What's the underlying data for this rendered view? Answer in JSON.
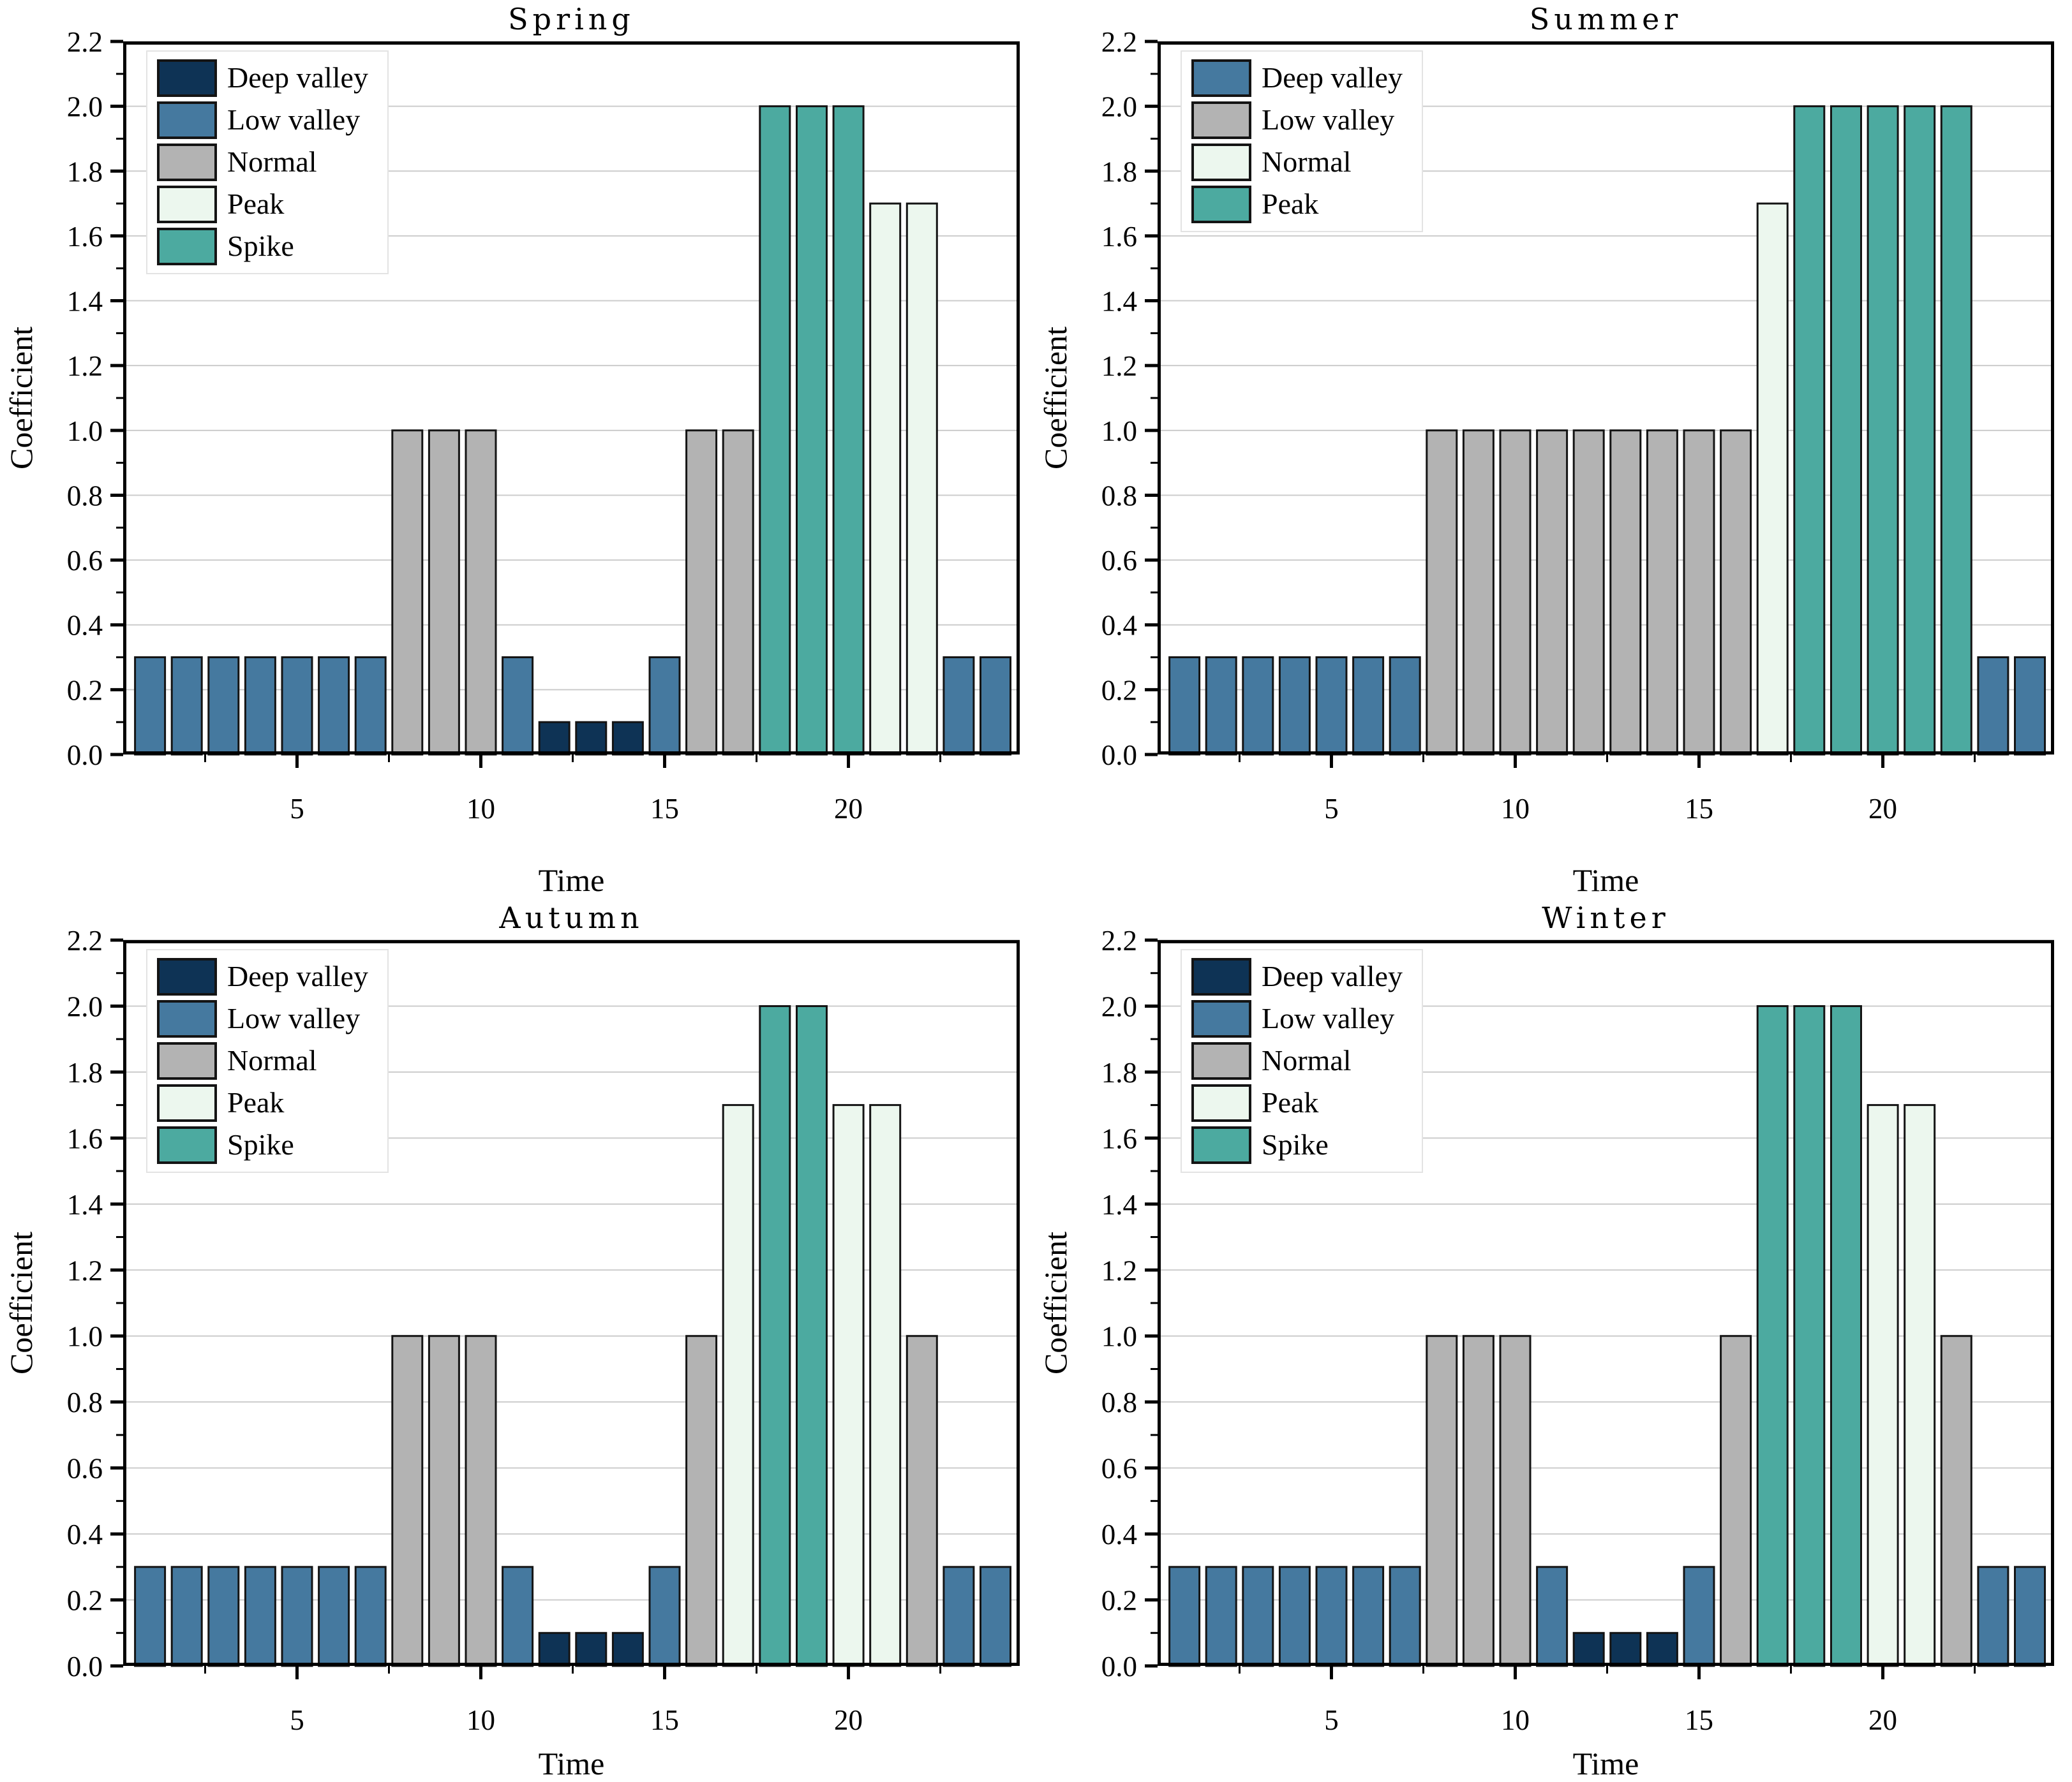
{
  "figure": {
    "background": "#ffffff",
    "bar_edge_color": "#141414",
    "grid_color": "#cccccc",
    "axis_color": "#000000",
    "palette": {
      "navy": "#0e3355",
      "blue": "#45799f",
      "gray": "#b3b3b3",
      "mint": "#ecf7ee",
      "teal": "#4caaa0"
    }
  },
  "axes": {
    "xlabel": "Time",
    "ylabel": "Coefficient",
    "ylim": [
      0,
      2.2
    ],
    "xlim": [
      0.27,
      24.66
    ],
    "grid": "horizontal-major-only",
    "ytick_labels": [
      "0.0",
      "0.2",
      "0.4",
      "0.6",
      "0.8",
      "1.0",
      "1.2",
      "1.4",
      "1.6",
      "1.8",
      "2.0",
      "2.2"
    ],
    "yticks_major": [
      0.0,
      0.2,
      0.4,
      0.6,
      0.8,
      1.0,
      1.2,
      1.4,
      1.6,
      1.8,
      2.0,
      2.2
    ],
    "yticks_minor": [
      0.1,
      0.3,
      0.5,
      0.7,
      0.9,
      1.1,
      1.3,
      1.5,
      1.7,
      1.9,
      2.1
    ],
    "xtick_labels": [
      "5",
      "10",
      "15",
      "20"
    ],
    "xticks_major": [
      5,
      10,
      15,
      20
    ],
    "xticks_minor": [
      2.5,
      7.5,
      12.5,
      17.5,
      22.5
    ]
  },
  "chart_data": [
    {
      "type": "bar",
      "title": "Spring",
      "xlabel": "Time",
      "ylabel": "Coefficient",
      "hours": [
        1,
        2,
        3,
        4,
        5,
        6,
        7,
        8,
        9,
        10,
        11,
        12,
        13,
        14,
        15,
        16,
        17,
        18,
        19,
        20,
        21,
        22,
        23,
        24
      ],
      "values": [
        0.3,
        0.3,
        0.3,
        0.3,
        0.3,
        0.3,
        0.3,
        1.0,
        1.0,
        1.0,
        0.3,
        0.1,
        0.1,
        0.1,
        0.3,
        1.0,
        1.0,
        2.0,
        2.0,
        2.0,
        1.7,
        1.7,
        0.3,
        0.3
      ],
      "bar_colors": [
        "blue",
        "blue",
        "blue",
        "blue",
        "blue",
        "blue",
        "blue",
        "gray",
        "gray",
        "gray",
        "blue",
        "navy",
        "navy",
        "navy",
        "blue",
        "gray",
        "gray",
        "teal",
        "teal",
        "teal",
        "mint",
        "mint",
        "blue",
        "blue"
      ],
      "legend_position": "upper left",
      "legend": [
        {
          "label": "Deep valley",
          "color": "navy"
        },
        {
          "label": "Low valley",
          "color": "blue"
        },
        {
          "label": "Normal",
          "color": "gray"
        },
        {
          "label": "Peak",
          "color": "mint"
        },
        {
          "label": "Spike",
          "color": "teal"
        }
      ]
    },
    {
      "type": "bar",
      "title": "Summer",
      "xlabel": "Time",
      "ylabel": "Coefficient",
      "hours": [
        1,
        2,
        3,
        4,
        5,
        6,
        7,
        8,
        9,
        10,
        11,
        12,
        13,
        14,
        15,
        16,
        17,
        18,
        19,
        20,
        21,
        22,
        23,
        24
      ],
      "values": [
        0.3,
        0.3,
        0.3,
        0.3,
        0.3,
        0.3,
        0.3,
        1.0,
        1.0,
        1.0,
        1.0,
        1.0,
        1.0,
        1.0,
        1.0,
        1.0,
        1.7,
        2.0,
        2.0,
        2.0,
        2.0,
        2.0,
        0.3,
        0.3
      ],
      "bar_colors": [
        "blue",
        "blue",
        "blue",
        "blue",
        "blue",
        "blue",
        "blue",
        "gray",
        "gray",
        "gray",
        "gray",
        "gray",
        "gray",
        "gray",
        "gray",
        "gray",
        "mint",
        "teal",
        "teal",
        "teal",
        "teal",
        "teal",
        "blue",
        "blue"
      ],
      "legend_position": "upper left",
      "legend": [
        {
          "label": "Deep valley",
          "color": "blue"
        },
        {
          "label": "Low valley",
          "color": "gray"
        },
        {
          "label": "Normal",
          "color": "mint"
        },
        {
          "label": "Peak",
          "color": "teal"
        }
      ]
    },
    {
      "type": "bar",
      "title": "Autumn",
      "xlabel": "Time",
      "ylabel": "Coefficient",
      "hours": [
        1,
        2,
        3,
        4,
        5,
        6,
        7,
        8,
        9,
        10,
        11,
        12,
        13,
        14,
        15,
        16,
        17,
        18,
        19,
        20,
        21,
        22,
        23,
        24
      ],
      "values": [
        0.3,
        0.3,
        0.3,
        0.3,
        0.3,
        0.3,
        0.3,
        1.0,
        1.0,
        1.0,
        0.3,
        0.1,
        0.1,
        0.1,
        0.3,
        1.0,
        1.7,
        2.0,
        2.0,
        1.7,
        1.7,
        1.0,
        0.3,
        0.3
      ],
      "bar_colors": [
        "blue",
        "blue",
        "blue",
        "blue",
        "blue",
        "blue",
        "blue",
        "gray",
        "gray",
        "gray",
        "blue",
        "navy",
        "navy",
        "navy",
        "blue",
        "gray",
        "mint",
        "teal",
        "teal",
        "mint",
        "mint",
        "gray",
        "blue",
        "blue"
      ],
      "legend_position": "upper left",
      "legend": [
        {
          "label": "Deep valley",
          "color": "navy"
        },
        {
          "label": "Low valley",
          "color": "blue"
        },
        {
          "label": "Normal",
          "color": "gray"
        },
        {
          "label": "Peak",
          "color": "mint"
        },
        {
          "label": "Spike",
          "color": "teal"
        }
      ]
    },
    {
      "type": "bar",
      "title": "Winter",
      "xlabel": "Time",
      "ylabel": "Coefficient",
      "hours": [
        1,
        2,
        3,
        4,
        5,
        6,
        7,
        8,
        9,
        10,
        11,
        12,
        13,
        14,
        15,
        16,
        17,
        18,
        19,
        20,
        21,
        22,
        23,
        24
      ],
      "values": [
        0.3,
        0.3,
        0.3,
        0.3,
        0.3,
        0.3,
        0.3,
        1.0,
        1.0,
        1.0,
        0.3,
        0.1,
        0.1,
        0.1,
        0.3,
        1.0,
        2.0,
        2.0,
        2.0,
        1.7,
        1.7,
        1.0,
        0.3,
        0.3
      ],
      "bar_colors": [
        "blue",
        "blue",
        "blue",
        "blue",
        "blue",
        "blue",
        "blue",
        "gray",
        "gray",
        "gray",
        "blue",
        "navy",
        "navy",
        "navy",
        "blue",
        "gray",
        "teal",
        "teal",
        "teal",
        "mint",
        "mint",
        "gray",
        "blue",
        "blue"
      ],
      "legend_position": "upper left",
      "legend": [
        {
          "label": "Deep valley",
          "color": "navy"
        },
        {
          "label": "Low valley",
          "color": "blue"
        },
        {
          "label": "Normal",
          "color": "gray"
        },
        {
          "label": "Peak",
          "color": "mint"
        },
        {
          "label": "Spike",
          "color": "teal"
        }
      ]
    }
  ]
}
